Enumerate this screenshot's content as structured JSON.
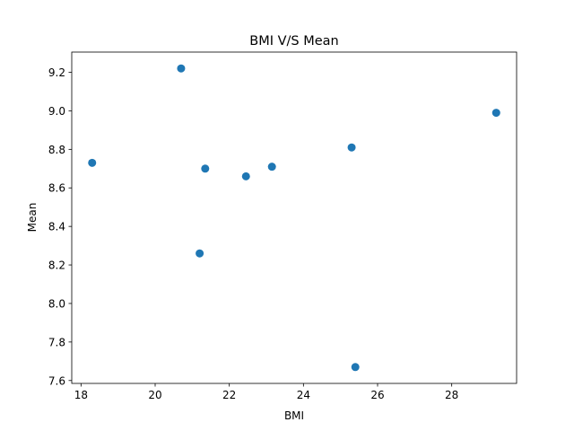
{
  "chart_data": {
    "type": "scatter",
    "title": "BMI V/S Mean",
    "xlabel": "BMI",
    "ylabel": "Mean",
    "xlim": [
      17.75,
      29.75
    ],
    "ylim": [
      7.585,
      9.305
    ],
    "xticks": [
      18,
      20,
      22,
      24,
      26,
      28
    ],
    "yticks": [
      7.6,
      7.8,
      8.0,
      8.2,
      8.4,
      8.6,
      8.8,
      9.0,
      9.2
    ],
    "xtick_labels": [
      "18",
      "20",
      "22",
      "24",
      "26",
      "28"
    ],
    "ytick_labels": [
      "7.6",
      "7.8",
      "8.0",
      "8.2",
      "8.4",
      "8.6",
      "8.8",
      "9.0",
      "9.2"
    ],
    "grid": false,
    "marker_color": "#1f77b4",
    "points": [
      {
        "x": 18.3,
        "y": 8.73
      },
      {
        "x": 20.7,
        "y": 9.22
      },
      {
        "x": 21.2,
        "y": 8.26
      },
      {
        "x": 21.35,
        "y": 8.7
      },
      {
        "x": 22.45,
        "y": 8.66
      },
      {
        "x": 23.15,
        "y": 8.71
      },
      {
        "x": 25.3,
        "y": 8.81
      },
      {
        "x": 25.4,
        "y": 7.67
      },
      {
        "x": 29.2,
        "y": 8.99
      }
    ]
  }
}
